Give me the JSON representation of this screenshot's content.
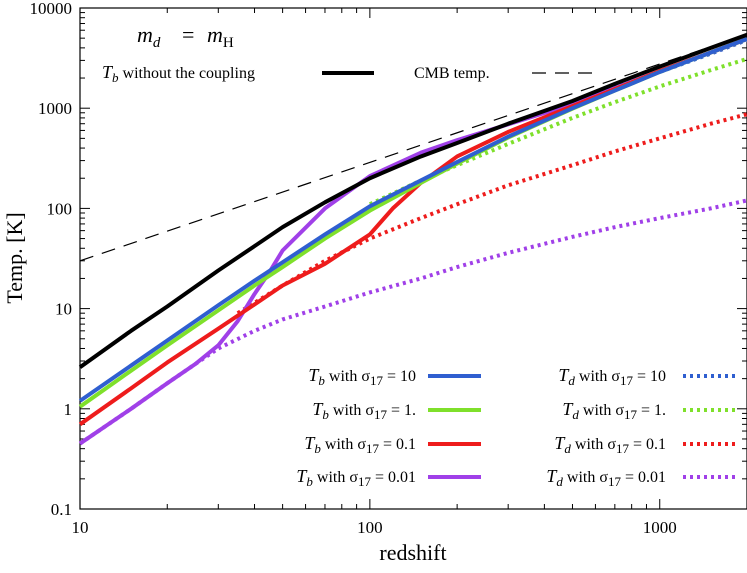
{
  "chart_data": {
    "type": "line",
    "title": "m_d = m_H",
    "xlabel": "redshift",
    "ylabel": "Temp. [K]",
    "xscale": "log",
    "yscale": "log",
    "xlim": [
      10,
      2000
    ],
    "ylim": [
      0.1,
      10000
    ],
    "x_ticks": [
      10,
      100,
      1000
    ],
    "x_tick_labels": [
      "10",
      "100",
      "1000"
    ],
    "y_ticks": [
      0.1,
      1,
      10,
      100,
      1000,
      10000
    ],
    "y_tick_labels": [
      "0.1",
      "1",
      "10",
      "100",
      "1000",
      "10000"
    ],
    "legend_placement": "top-left and bottom-right",
    "series": [
      {
        "name": "T_b without the coupling",
        "style": "solid",
        "width": 4,
        "color": "#000000",
        "x": [
          10,
          15,
          20,
          30,
          40,
          50,
          70,
          100,
          150,
          200,
          300,
          500,
          700,
          1000,
          1500,
          2000
        ],
        "y": [
          2.6,
          6,
          10.5,
          24,
          42,
          65,
          115,
          200,
          330,
          450,
          700,
          1180,
          1750,
          2600,
          4000,
          5400
        ]
      },
      {
        "name": "CMB temp.",
        "style": "dashed",
        "width": 1.2,
        "color": "#000000",
        "x": [
          10,
          2000
        ],
        "y": [
          30,
          5450
        ]
      },
      {
        "name": "T_b with σ17 = 10",
        "style": "solid",
        "width": 4,
        "color": "#2f5fd0",
        "x": [
          10,
          15,
          20,
          30,
          40,
          50,
          70,
          100,
          150,
          200,
          300,
          500,
          700,
          1000,
          1500,
          2000
        ],
        "y": [
          1.2,
          2.7,
          4.8,
          10.8,
          19,
          29,
          55,
          105,
          190,
          290,
          520,
          1000,
          1500,
          2300,
          3600,
          4900
        ]
      },
      {
        "name": "T_b with σ17 = 1.",
        "style": "solid",
        "width": 4,
        "color": "#7fe02b",
        "x": [
          10,
          15,
          20,
          30,
          40,
          50,
          70,
          100,
          150,
          200,
          300,
          500,
          700,
          1000,
          1500,
          2000
        ],
        "y": [
          1.05,
          2.4,
          4.3,
          9.6,
          17,
          26,
          50,
          95,
          180,
          280,
          510,
          990,
          1500,
          2300,
          3600,
          4900
        ]
      },
      {
        "name": "T_b with σ17 = 0.1",
        "style": "solid",
        "width": 4,
        "color": "#ee1c1c",
        "x": [
          10,
          15,
          20,
          30,
          40,
          50,
          70,
          100,
          120,
          150,
          200,
          300,
          500,
          700,
          1000,
          1500,
          2000
        ],
        "y": [
          0.7,
          1.6,
          2.9,
          6.3,
          11,
          17,
          28,
          55,
          100,
          180,
          330,
          580,
          1050,
          1550,
          2350,
          3600,
          4900
        ]
      },
      {
        "name": "T_b with σ17 = 0.01",
        "style": "solid",
        "width": 4,
        "color": "#a040e8",
        "x": [
          10,
          15,
          20,
          25,
          30,
          35,
          40,
          45,
          50,
          70,
          100,
          150,
          200,
          300,
          500,
          700,
          1000,
          1500,
          2000
        ],
        "y": [
          0.45,
          1.0,
          1.8,
          2.8,
          4.3,
          7.5,
          14,
          23,
          38,
          100,
          210,
          360,
          480,
          690,
          1100,
          1580,
          2350,
          3600,
          4900
        ]
      },
      {
        "name": "T_d with σ17 = 10",
        "style": "dotted",
        "width": 4,
        "color": "#2f5fd0",
        "x": [
          300,
          500,
          700,
          1000,
          1500,
          2000
        ],
        "y": [
          700,
          1150,
          1600,
          2300,
          3500,
          4800
        ]
      },
      {
        "name": "T_d with σ17 = 1.",
        "style": "dotted",
        "width": 4,
        "color": "#7fe02b",
        "x": [
          100,
          150,
          200,
          300,
          500,
          700,
          1000,
          1500,
          2000
        ],
        "y": [
          110,
          190,
          270,
          440,
          800,
          1150,
          1650,
          2400,
          3100
        ]
      },
      {
        "name": "T_d with σ17 = 0.1",
        "style": "dotted",
        "width": 4,
        "color": "#ee1c1c",
        "x": [
          35,
          50,
          70,
          100,
          150,
          200,
          300,
          500,
          700,
          1000,
          1500,
          2000
        ],
        "y": [
          9,
          17,
          30,
          50,
          80,
          110,
          170,
          270,
          370,
          500,
          700,
          870
        ]
      },
      {
        "name": "T_d with σ17 = 0.01",
        "style": "dotted",
        "width": 4,
        "color": "#a040e8",
        "x": [
          10,
          15,
          20,
          25,
          30,
          40,
          50,
          70,
          100,
          150,
          200,
          300,
          500,
          700,
          1000,
          1500,
          2000
        ],
        "y": [
          0.45,
          1.0,
          1.8,
          2.8,
          4.0,
          6.0,
          7.8,
          10.5,
          14.5,
          20,
          26,
          36,
          52,
          65,
          80,
          100,
          120
        ]
      }
    ]
  },
  "annotations": {
    "title_lhs": "m",
    "title_lhs_sub": "d",
    "title_eq": "=",
    "title_rhs": "m",
    "title_rhs_sub": "H"
  },
  "legend_labels": [
    {
      "prefix": "T",
      "sub": "b",
      "text": " without the coupling"
    },
    {
      "prefix": "",
      "sub": "",
      "text": "CMB temp."
    },
    {
      "prefix": "T",
      "sub": "b",
      "text": " with σ",
      "sub2": "17",
      "value": " = 10"
    },
    {
      "prefix": "T",
      "sub": "b",
      "text": " with σ",
      "sub2": "17",
      "value": " = 1."
    },
    {
      "prefix": "T",
      "sub": "b",
      "text": " with σ",
      "sub2": "17",
      "value": " = 0.1"
    },
    {
      "prefix": "T",
      "sub": "b",
      "text": " with σ",
      "sub2": "17",
      "value": " = 0.01"
    },
    {
      "prefix": "T",
      "sub": "d",
      "text": " with σ",
      "sub2": "17",
      "value": " = 10"
    },
    {
      "prefix": "T",
      "sub": "d",
      "text": " with σ",
      "sub2": "17",
      "value": " = 1."
    },
    {
      "prefix": "T",
      "sub": "d",
      "text": " with σ",
      "sub2": "17",
      "value": " = 0.1"
    },
    {
      "prefix": "T",
      "sub": "d",
      "text": " with σ",
      "sub2": "17",
      "value": " = 0.01"
    }
  ]
}
